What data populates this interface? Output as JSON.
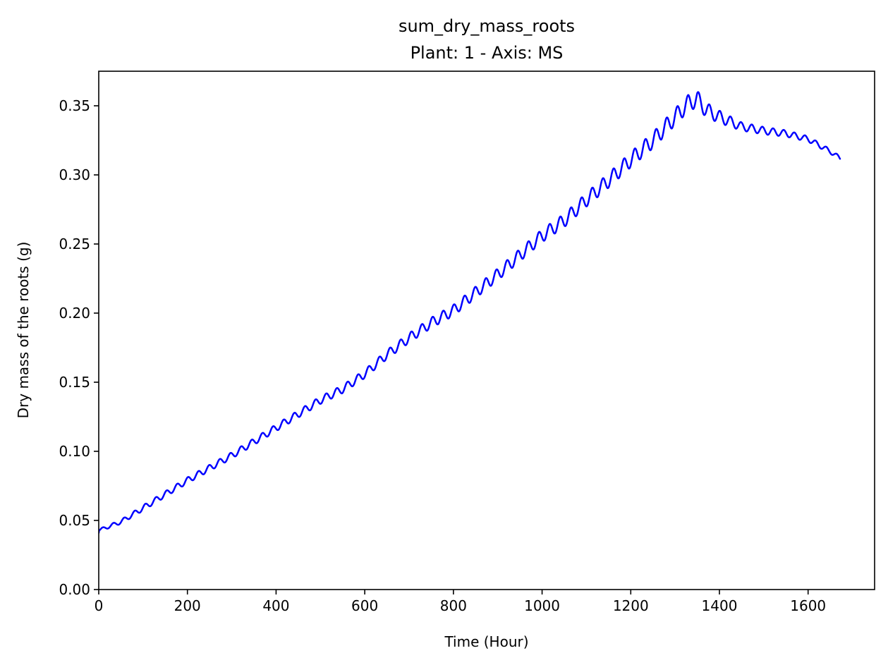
{
  "chart_data": {
    "type": "line",
    "title": "sum_dry_mass_roots",
    "subtitle": "Plant: 1 - Axis: MS",
    "xlabel": "Time (Hour)",
    "ylabel": "Dry mass of the roots (g)",
    "xlim": [
      0,
      1750
    ],
    "ylim": [
      0,
      0.375
    ],
    "xticks": [
      0,
      200,
      400,
      600,
      800,
      1000,
      1200,
      1400,
      1600
    ],
    "xtick_labels": [
      "0",
      "200",
      "400",
      "600",
      "800",
      "1000",
      "1200",
      "1400",
      "1600"
    ],
    "yticks": [
      0,
      0.05,
      0.1,
      0.15,
      0.2,
      0.25,
      0.3,
      0.35
    ],
    "ytick_labels": [
      "0.00",
      "0.05",
      "0.10",
      "0.15",
      "0.20",
      "0.25",
      "0.30",
      "0.35"
    ],
    "grid": false,
    "series": [
      {
        "color": "#0000ff",
        "line_width": 2.5,
        "trend": {
          "x": [
            0,
            1,
            10,
            50,
            100,
            150,
            200,
            250,
            300,
            350,
            400,
            450,
            500,
            550,
            600,
            650,
            700,
            750,
            800,
            850,
            900,
            950,
            1000,
            1050,
            1100,
            1150,
            1200,
            1250,
            1300,
            1330,
            1350,
            1370,
            1400,
            1450,
            1500,
            1550,
            1600,
            1650,
            1672
          ],
          "y": [
            0.041,
            0.043,
            0.044,
            0.049,
            0.059,
            0.069,
            0.079,
            0.088,
            0.097,
            0.107,
            0.117,
            0.127,
            0.137,
            0.145,
            0.156,
            0.17,
            0.182,
            0.193,
            0.202,
            0.215,
            0.228,
            0.242,
            0.256,
            0.267,
            0.282,
            0.296,
            0.311,
            0.325,
            0.342,
            0.352,
            0.355,
            0.347,
            0.342,
            0.335,
            0.332,
            0.33,
            0.326,
            0.317,
            0.312
          ]
        },
        "oscillation": {
          "period_hours": 24,
          "amplitude": [
            [
              0,
              0.001
            ],
            [
              100,
              0.002
            ],
            [
              400,
              0.0025
            ],
            [
              600,
              0.003
            ],
            [
              800,
              0.004
            ],
            [
              1100,
              0.005
            ],
            [
              1300,
              0.006
            ],
            [
              1350,
              0.006
            ],
            [
              1450,
              0.003
            ],
            [
              1600,
              0.002
            ],
            [
              1672,
              0.0015
            ]
          ]
        }
      }
    ]
  }
}
